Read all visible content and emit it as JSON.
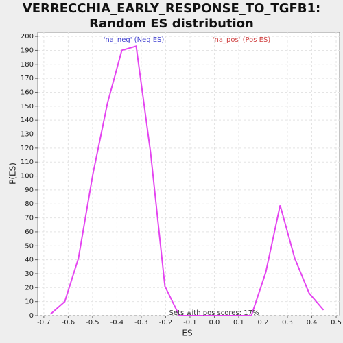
{
  "chart_data": {
    "type": "line",
    "title": "VERRECCHIA_EARLY_RESPONSE_TO_TGFB1: Random ES distribution",
    "xlabel": "ES",
    "ylabel": "P(ES)",
    "annotations": [
      {
        "text": "'na_neg' (Neg ES)",
        "color": "#4040d0"
      },
      {
        "text": "'na_pos' (Pos ES)",
        "color": "#d04040"
      },
      {
        "text": "Sets with pos scores: 17%",
        "color": "#333333"
      }
    ],
    "x": [
      -0.673,
      -0.614,
      -0.558,
      -0.499,
      -0.439,
      -0.38,
      -0.321,
      -0.262,
      -0.203,
      -0.144,
      -0.085,
      -0.025,
      0.034,
      0.093,
      0.152,
      0.211,
      0.27,
      0.33,
      0.389,
      0.448
    ],
    "values": [
      1,
      10,
      41,
      101,
      152,
      190,
      193,
      117,
      21,
      0,
      0,
      0,
      0,
      0,
      0,
      31,
      79,
      41,
      16,
      4
    ],
    "color": "#e445f0",
    "xlim": [
      -0.725,
      0.514
    ],
    "ylim": [
      0,
      203
    ],
    "xticks": [
      -0.7,
      -0.6,
      -0.5,
      -0.4,
      -0.3,
      -0.2,
      -0.1,
      {
        "value": 0,
        "label": "0.0"
      },
      0.1,
      0.2,
      0.3,
      0.4,
      0.5
    ],
    "yticks": [
      0,
      10,
      20,
      30,
      40,
      50,
      60,
      70,
      80,
      90,
      100,
      110,
      120,
      130,
      140,
      150,
      160,
      170,
      180,
      190,
      200
    ],
    "grid": true
  }
}
